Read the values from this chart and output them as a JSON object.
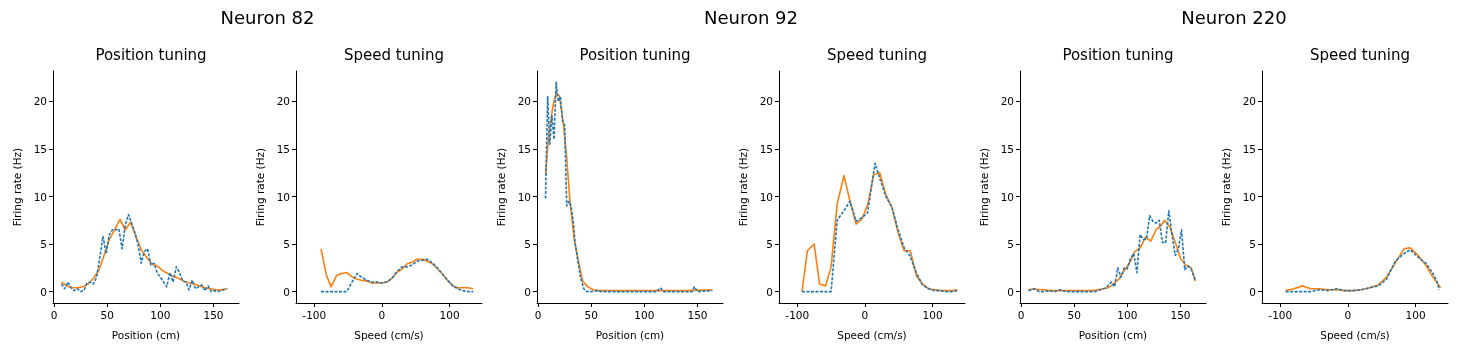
{
  "chart_data": [
    {
      "type": "line",
      "title": "Position tuning",
      "annotations": [
        "Neuron 82"
      ],
      "xlabel": "Position (cm)",
      "ylabel": "Firing rate (Hz)",
      "xlim": [
        -1,
        174
      ],
      "xticks": [
        0,
        50,
        100,
        150
      ],
      "ylim": [
        -1.2,
        23.2
      ],
      "yticks": [
        0,
        5,
        10,
        15,
        20
      ],
      "grid": false,
      "series": [
        {
          "color": "#1f77b4",
          "line_style": "dashed",
          "x": [
            7,
            10,
            13,
            16,
            19,
            22,
            25,
            28,
            31,
            34,
            37,
            40,
            43,
            46,
            49,
            52,
            55,
            58,
            61,
            64,
            67,
            70,
            73,
            76,
            79,
            82,
            85,
            88,
            91,
            94,
            97,
            100,
            103,
            106,
            109,
            112,
            115,
            118,
            121,
            124,
            127,
            130,
            133,
            136,
            139,
            142,
            145,
            148,
            151,
            154,
            157,
            160,
            163
          ],
          "values": [
            0.8,
            0.3,
            1.0,
            0.4,
            0.1,
            0.3,
            0,
            0.1,
            0.9,
            1.0,
            0.8,
            1.5,
            3.5,
            5.8,
            4.0,
            6.0,
            6.5,
            6.5,
            6.6,
            4.5,
            7.0,
            8.1,
            7.2,
            6.2,
            5.0,
            3.0,
            4.2,
            4.5,
            2.8,
            3.0,
            2.0,
            1.5,
            1.0,
            0.5,
            2.0,
            1.0,
            2.6,
            2.0,
            1.1,
            1.0,
            0.2,
            1.2,
            0.3,
            0.5,
            0.7,
            0.1,
            0.6,
            0,
            0.1,
            0,
            0.1,
            0.2,
            0.3
          ]
        },
        {
          "color": "#ff7f0e",
          "line_style": "solid",
          "x": [
            7,
            12,
            17,
            22,
            27,
            32,
            37,
            42,
            47,
            52,
            57,
            62,
            67,
            72,
            77,
            82,
            87,
            92,
            97,
            102,
            107,
            112,
            117,
            122,
            127,
            132,
            137,
            142,
            147,
            152,
            157,
            162
          ],
          "values": [
            1.0,
            0.6,
            0.4,
            0.4,
            0.5,
            0.8,
            1.4,
            2.2,
            3.8,
            5.5,
            6.5,
            7.6,
            6.5,
            7.3,
            5.8,
            4.4,
            3.6,
            2.9,
            2.7,
            2.2,
            1.9,
            1.6,
            1.4,
            1.1,
            0.9,
            0.8,
            0.6,
            0.4,
            0.3,
            0.2,
            0.2,
            0.3
          ]
        }
      ]
    },
    {
      "type": "line",
      "title": "Speed tuning",
      "xlabel": "Speed (cm/s)",
      "ylabel": "Firing rate (Hz)",
      "xlim": [
        -127,
        148
      ],
      "xticks": [
        -100,
        0,
        100
      ],
      "ylim": [
        -1.2,
        23.2
      ],
      "yticks": [
        0,
        5,
        10,
        15,
        20
      ],
      "grid": false,
      "series": [
        {
          "color": "#1f77b4",
          "line_style": "dashed",
          "x": [
            -90,
            -82,
            -75,
            -67,
            -60,
            -52,
            -45,
            -37,
            -30,
            -22,
            -15,
            -7,
            0,
            7,
            15,
            22,
            30,
            37,
            45,
            52,
            60,
            67,
            75,
            82,
            90,
            97,
            105,
            112,
            120,
            127,
            135
          ],
          "values": [
            0,
            0,
            0,
            0,
            0,
            0,
            0.9,
            1.9,
            1.5,
            1.2,
            1.0,
            1.0,
            0.9,
            1.0,
            1.4,
            2.1,
            2.6,
            2.6,
            2.8,
            3.2,
            3.3,
            3.4,
            3.0,
            2.5,
            1.8,
            1.2,
            0.6,
            0.3,
            0.1,
            0,
            0
          ]
        },
        {
          "color": "#ff7f0e",
          "line_style": "solid",
          "x": [
            -90,
            -82,
            -75,
            -67,
            -60,
            -52,
            -45,
            -37,
            -30,
            -22,
            -15,
            -7,
            0,
            7,
            15,
            22,
            30,
            37,
            45,
            52,
            60,
            67,
            75,
            82,
            90,
            97,
            105,
            112,
            120,
            127,
            135
          ],
          "values": [
            4.5,
            1.7,
            0.5,
            1.7,
            1.9,
            2.0,
            1.6,
            1.3,
            1.2,
            1.1,
            0.9,
            0.9,
            0.9,
            1.0,
            1.4,
            2.0,
            2.4,
            2.9,
            3.1,
            3.4,
            3.4,
            3.2,
            2.9,
            2.4,
            1.8,
            1.2,
            0.6,
            0.4,
            0.4,
            0.4,
            0.3
          ]
        }
      ]
    },
    {
      "type": "line",
      "title": "Position tuning",
      "annotations": [
        "Neuron 92"
      ],
      "xlabel": "Position (cm)",
      "ylabel": "Firing rate (Hz)",
      "xlim": [
        -1,
        174
      ],
      "xticks": [
        0,
        50,
        100,
        150
      ],
      "ylim": [
        -1.2,
        23.2
      ],
      "yticks": [
        0,
        5,
        10,
        15,
        20
      ],
      "grid": false,
      "series": [
        {
          "color": "#1f77b4",
          "line_style": "dashed",
          "x": [
            7,
            9,
            11,
            13,
            15,
            17,
            19,
            21,
            23,
            25,
            27,
            29,
            31,
            33,
            35,
            37,
            40,
            43,
            46,
            50,
            55,
            60,
            80,
            100,
            112,
            115,
            118,
            145,
            147,
            150,
            164
          ],
          "values": [
            9.8,
            20.5,
            15.5,
            18.5,
            16,
            22,
            20,
            20.5,
            18,
            17.5,
            9,
            9.5,
            9.0,
            7.5,
            5.0,
            3.5,
            1.5,
            0.3,
            0,
            0,
            0.1,
            0,
            0,
            0,
            0,
            0.4,
            0,
            0,
            0.5,
            0,
            0.1
          ]
        },
        {
          "color": "#ff7f0e",
          "line_style": "solid",
          "x": [
            7,
            10,
            14,
            17,
            20,
            24,
            27,
            30,
            34,
            38,
            42,
            47,
            52,
            57,
            62,
            80,
            100,
            120,
            140,
            164
          ],
          "values": [
            12.3,
            16.5,
            19.5,
            20.9,
            20.6,
            17.5,
            14,
            9.5,
            5.5,
            3.2,
            1.1,
            0.5,
            0.2,
            0.1,
            0.1,
            0.1,
            0.1,
            0.1,
            0.1,
            0.2
          ]
        }
      ]
    },
    {
      "type": "line",
      "title": "Speed tuning",
      "xlabel": "Speed (cm/s)",
      "ylabel": "Firing rate (Hz)",
      "xlim": [
        -127,
        148
      ],
      "xticks": [
        -100,
        0,
        100
      ],
      "ylim": [
        -1.2,
        23.2
      ],
      "yticks": [
        0,
        5,
        10,
        15,
        20
      ],
      "grid": false,
      "series": [
        {
          "color": "#1f77b4",
          "line_style": "dashed",
          "x": [
            -93,
            -85,
            -75,
            -67,
            -58,
            -50,
            -41,
            -31,
            -22,
            -13,
            -4,
            4,
            15,
            22,
            31,
            40,
            49,
            58,
            67,
            76,
            85,
            94,
            103,
            112,
            121,
            130,
            137
          ],
          "values": [
            0,
            0,
            0,
            0,
            0,
            0,
            7.5,
            8.5,
            9.5,
            7.4,
            7.8,
            8.3,
            13.5,
            11.9,
            10.0,
            8.9,
            6.5,
            4.6,
            3.7,
            2.0,
            0.7,
            0.3,
            0.1,
            0.1,
            0,
            0,
            0.1
          ]
        },
        {
          "color": "#ff7f0e",
          "line_style": "solid",
          "x": [
            -93,
            -85,
            -75,
            -67,
            -58,
            -50,
            -41,
            -31,
            -22,
            -13,
            -4,
            4,
            13,
            22,
            31,
            40,
            49,
            58,
            67,
            76,
            85,
            94,
            103,
            112,
            121,
            130,
            137
          ],
          "values": [
            0,
            4.3,
            5.0,
            0.8,
            0.6,
            2.6,
            9.2,
            12.2,
            9.5,
            7.1,
            7.7,
            9.1,
            12.3,
            12.5,
            10.2,
            8.8,
            6.2,
            4.3,
            4.3,
            1.7,
            0.8,
            0.3,
            0.2,
            0.1,
            0.1,
            0.1,
            0.2
          ]
        }
      ]
    },
    {
      "type": "line",
      "title": "Position tuning",
      "annotations": [
        "Neuron 220"
      ],
      "xlabel": "Position (cm)",
      "ylabel": "Firing rate (Hz)",
      "xlim": [
        -1,
        174
      ],
      "xticks": [
        0,
        50,
        100,
        150
      ],
      "ylim": [
        -1.2,
        23.2
      ],
      "yticks": [
        0,
        5,
        10,
        15,
        20
      ],
      "grid": false,
      "series": [
        {
          "color": "#1f77b4",
          "line_style": "dashed",
          "x": [
            7,
            12,
            17,
            22,
            27,
            32,
            37,
            42,
            50,
            60,
            70,
            75,
            80,
            85,
            88,
            91,
            94,
            97,
            100,
            103,
            106,
            109,
            112,
            115,
            118,
            121,
            124,
            127,
            130,
            133,
            136,
            139,
            142,
            145,
            148,
            151,
            154,
            157,
            160,
            164
          ],
          "values": [
            0.1,
            0.3,
            0,
            0,
            0.1,
            0,
            0.2,
            0,
            0,
            0,
            0,
            0.2,
            0.4,
            1.0,
            0.5,
            2.5,
            1.5,
            2.5,
            2.4,
            3.5,
            4.0,
            2.0,
            6.0,
            5.5,
            5.5,
            8.0,
            7.4,
            7.2,
            7.5,
            5.2,
            5.1,
            8.5,
            6.0,
            3.8,
            4.5,
            6.5,
            2.3,
            2.7,
            2.4,
            1.2
          ]
        },
        {
          "color": "#ff7f0e",
          "line_style": "solid",
          "x": [
            7,
            12,
            17,
            22,
            27,
            32,
            37,
            42,
            52,
            62,
            67,
            72,
            77,
            82,
            87,
            92,
            97,
            102,
            107,
            112,
            117,
            122,
            127,
            132,
            135,
            140,
            145,
            150,
            155,
            160,
            164
          ],
          "values": [
            0.2,
            0.3,
            0.2,
            0.2,
            0.1,
            0.1,
            0.1,
            0.1,
            0.1,
            0.1,
            0.1,
            0.2,
            0.3,
            0.4,
            0.8,
            1.3,
            2.2,
            3.0,
            4.2,
            4.6,
            5.7,
            5.3,
            6.5,
            7.0,
            7.5,
            6.8,
            5.2,
            3.5,
            2.8,
            2.5,
            1.1
          ]
        }
      ]
    },
    {
      "type": "line",
      "title": "Speed tuning",
      "xlabel": "Speed (cm/s)",
      "ylabel": "Firing rate (Hz)",
      "xlim": [
        -127,
        148
      ],
      "xticks": [
        -100,
        0,
        100
      ],
      "ylim": [
        -1.2,
        23.2
      ],
      "yticks": [
        0,
        5,
        10,
        15,
        20
      ],
      "grid": false,
      "series": [
        {
          "color": "#1f77b4",
          "line_style": "dashed",
          "x": [
            -92,
            -80,
            -67,
            -55,
            -42,
            -30,
            -17,
            -5,
            8,
            20,
            32,
            45,
            57,
            70,
            83,
            92,
            104,
            115,
            125,
            132,
            135
          ],
          "values": [
            0,
            0,
            0,
            0,
            0.2,
            0.1,
            0.3,
            0.1,
            0.1,
            0.2,
            0.4,
            0.6,
            1.3,
            3.2,
            4.0,
            4.4,
            3.6,
            3.0,
            2.0,
            1.0,
            0.2
          ]
        },
        {
          "color": "#ff7f0e",
          "line_style": "solid",
          "x": [
            -92,
            -80,
            -67,
            -55,
            -42,
            -30,
            -17,
            -5,
            8,
            20,
            32,
            45,
            57,
            70,
            83,
            92,
            104,
            115,
            125,
            137
          ],
          "values": [
            0.1,
            0.3,
            0.6,
            0.3,
            0.3,
            0.2,
            0.2,
            0.1,
            0.1,
            0.2,
            0.4,
            0.7,
            1.5,
            3.0,
            4.5,
            4.6,
            3.8,
            2.8,
            1.6,
            0.4
          ]
        }
      ]
    }
  ]
}
